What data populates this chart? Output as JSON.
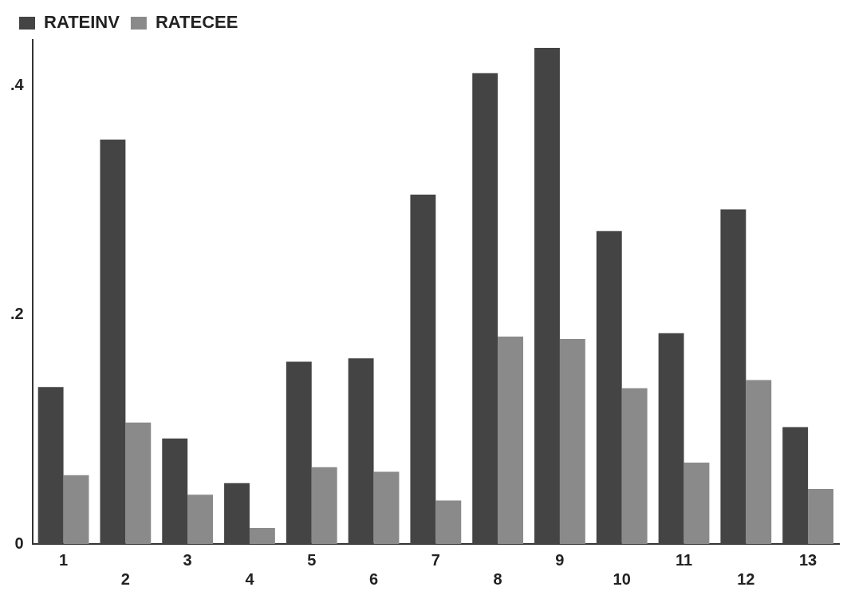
{
  "chart_data": {
    "type": "bar",
    "categories": [
      "1",
      "2",
      "3",
      "4",
      "5",
      "6",
      "7",
      "8",
      "9",
      "10",
      "11",
      "12",
      "13"
    ],
    "series": [
      {
        "name": "RATEINV",
        "color": "#444444",
        "values": [
          0.137,
          0.353,
          0.092,
          0.053,
          0.159,
          0.162,
          0.305,
          0.411,
          0.433,
          0.273,
          0.184,
          0.292,
          0.102
        ]
      },
      {
        "name": "RATECEE",
        "color": "#8a8a8a",
        "values": [
          0.06,
          0.106,
          0.043,
          0.014,
          0.067,
          0.063,
          0.038,
          0.181,
          0.179,
          0.136,
          0.071,
          0.143,
          0.048
        ]
      }
    ],
    "ylim": [
      0,
      0.44
    ],
    "yticks": [
      0,
      {
        "value": 0.2,
        "label": ".2"
      },
      {
        "value": 0.4,
        "label": ".4"
      }
    ],
    "grid": false,
    "legend": "top"
  }
}
